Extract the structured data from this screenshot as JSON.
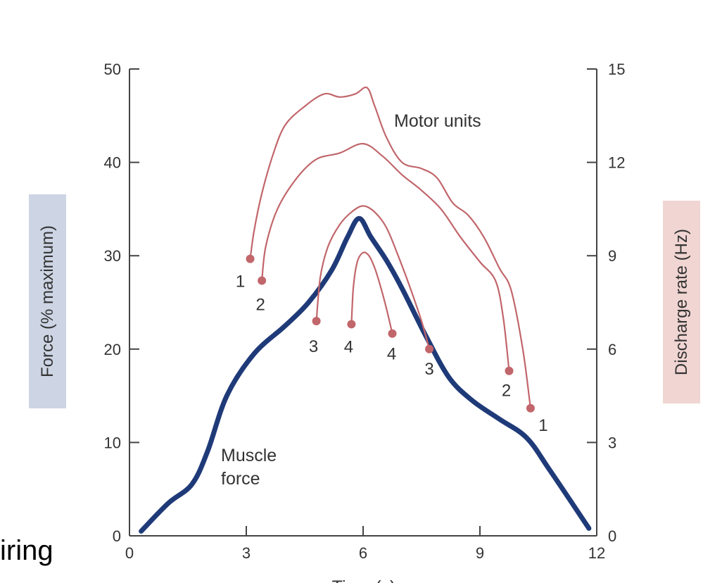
{
  "chart_data": {
    "type": "line",
    "xlabel": "Time (s)",
    "ylabel_left": "Force (% maximum)",
    "ylabel_right": "Discharge rate (Hz)",
    "xlim": [
      0,
      12
    ],
    "ylim_left": [
      0,
      50
    ],
    "ylim_right": [
      0,
      15
    ],
    "x_ticks": [
      0,
      3,
      6,
      9,
      12
    ],
    "y_ticks_left": [
      0,
      10,
      20,
      30,
      40,
      50
    ],
    "y_ticks_right": [
      0,
      3,
      6,
      9,
      12,
      15
    ],
    "annotations": {
      "motor_units": "Motor units",
      "muscle_force_line1": "Muscle",
      "muscle_force_line2": "force"
    },
    "series": [
      {
        "name": "Muscle force",
        "axis": "left",
        "color": "#1f3a78",
        "x": [
          0.3,
          1.0,
          1.6,
          2.0,
          2.5,
          3.2,
          4.0,
          4.6,
          5.2,
          5.6,
          5.9,
          6.2,
          6.6,
          7.0,
          7.6,
          8.2,
          8.8,
          9.5,
          10.2,
          10.8,
          11.8
        ],
        "y": [
          0.5,
          3.5,
          5.5,
          9.0,
          15.0,
          19.5,
          22.5,
          25.0,
          28.5,
          32.0,
          34.0,
          32.0,
          29.5,
          26.5,
          21.5,
          17.0,
          14.5,
          12.5,
          10.5,
          7.0,
          0.8
        ]
      },
      {
        "name": "Motor unit 1",
        "axis": "right",
        "color": "#c1666b",
        "start_label": "1",
        "end_label": "1",
        "x": [
          3.1,
          3.2,
          3.4,
          3.7,
          4.0,
          4.5,
          5.0,
          5.4,
          5.8,
          6.1,
          6.3,
          6.6,
          7.0,
          7.5,
          7.9,
          8.3,
          8.7,
          9.1,
          9.5,
          9.8,
          10.1,
          10.3
        ],
        "y": [
          8.9,
          9.8,
          11.0,
          12.3,
          13.2,
          13.8,
          14.2,
          14.1,
          14.2,
          14.4,
          13.8,
          12.8,
          12.0,
          11.8,
          11.5,
          10.7,
          10.3,
          9.6,
          8.6,
          7.9,
          6.0,
          4.1
        ]
      },
      {
        "name": "Motor unit 2",
        "axis": "right",
        "color": "#c1666b",
        "start_label": "2",
        "end_label": "2",
        "x": [
          3.4,
          3.5,
          3.8,
          4.3,
          4.8,
          5.4,
          6.0,
          6.5,
          7.0,
          7.5,
          8.0,
          8.5,
          9.0,
          9.4,
          9.6,
          9.75
        ],
        "y": [
          8.2,
          9.3,
          10.5,
          11.5,
          12.1,
          12.3,
          12.6,
          12.2,
          11.6,
          11.1,
          10.5,
          9.6,
          8.8,
          8.2,
          7.0,
          5.3
        ]
      },
      {
        "name": "Motor unit 3",
        "axis": "right",
        "color": "#c1666b",
        "start_label": "3",
        "end_label": "3",
        "x": [
          4.8,
          4.9,
          5.1,
          5.4,
          5.7,
          6.0,
          6.3,
          6.6,
          6.9,
          7.2,
          7.5,
          7.7
        ],
        "y": [
          6.9,
          8.3,
          9.3,
          10.0,
          10.4,
          10.6,
          10.4,
          9.9,
          9.0,
          8.0,
          6.9,
          6.0
        ]
      },
      {
        "name": "Motor unit 4",
        "axis": "right",
        "color": "#c1666b",
        "start_label": "4",
        "end_label": "4",
        "x": [
          5.7,
          5.75,
          5.85,
          6.0,
          6.15,
          6.3,
          6.45,
          6.6,
          6.75
        ],
        "y": [
          6.8,
          8.0,
          8.8,
          9.1,
          9.0,
          8.6,
          8.0,
          7.3,
          6.5
        ]
      }
    ]
  },
  "slide": {
    "partial_text": "iring"
  }
}
